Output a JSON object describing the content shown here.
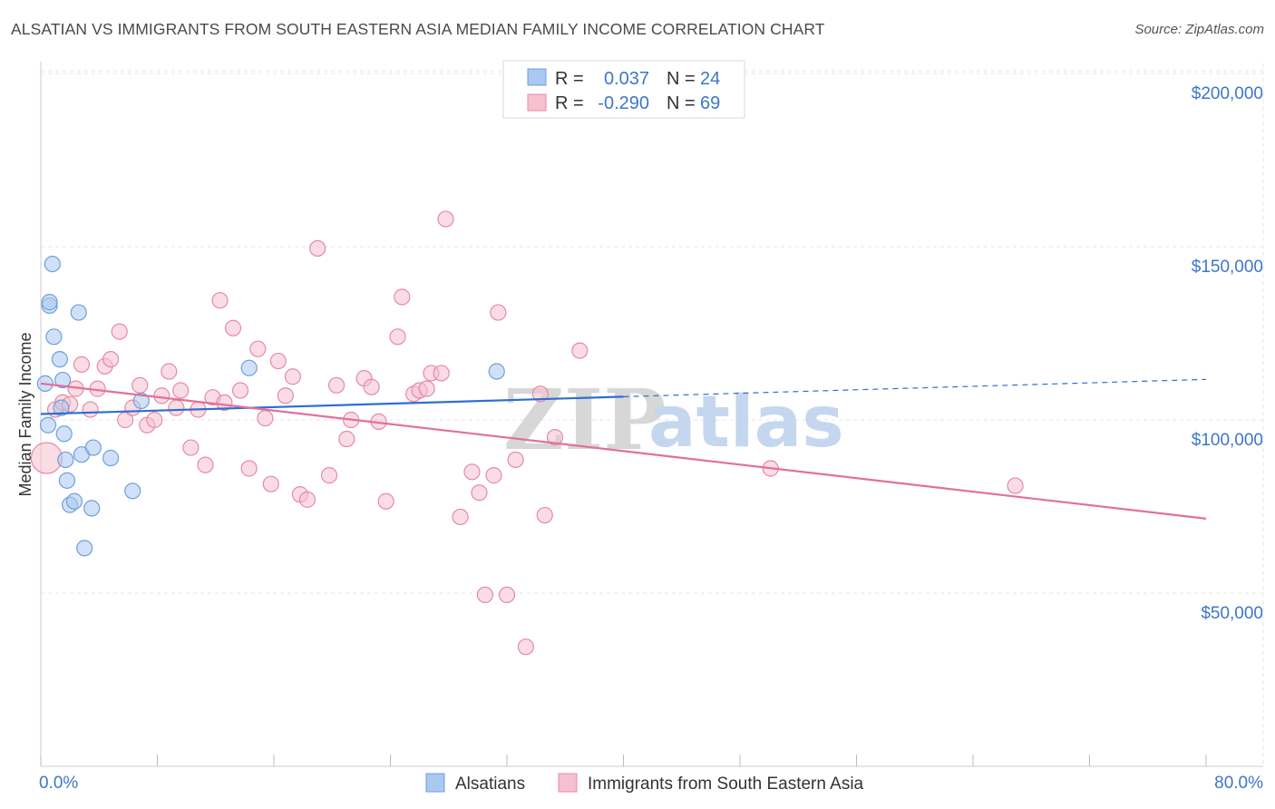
{
  "title": "ALSATIAN VS IMMIGRANTS FROM SOUTH EASTERN ASIA MEDIAN FAMILY INCOME CORRELATION CHART",
  "source": "Source: ZipAtlas.com",
  "watermark": {
    "zip": "ZIP",
    "atlas": "atlas"
  },
  "colors": {
    "blue_fill": "#aac8f0",
    "blue_stroke": "#6f9fdc",
    "blue_line": "#2f6fce",
    "pink_fill": "#f6c0d0",
    "pink_stroke": "#e58aa8",
    "pink_line": "#e2709a",
    "tick_text": "#3e76c9",
    "grid": "#e6e6e6"
  },
  "legend": {
    "rows": [
      {
        "r_label": "R =",
        "r_value": "0.037",
        "n_label": "N =",
        "n_value": "24"
      },
      {
        "r_label": "R =",
        "r_value": "-0.290",
        "n_label": "N =",
        "n_value": "69"
      }
    ]
  },
  "bottom_legend": {
    "series1": "Alsatians",
    "series2": "Immigrants from South Eastern Asia"
  },
  "chart_data": {
    "type": "scatter",
    "title": "ALSATIAN VS IMMIGRANTS FROM SOUTH EASTERN ASIA MEDIAN FAMILY INCOME CORRELATION CHART",
    "ylabel": "Median Family Income",
    "xlabel": "",
    "x_tick_labels": {
      "left": "0.0%",
      "right": "80.0%"
    },
    "xlim": [
      0,
      80
    ],
    "ylim": [
      0,
      210000
    ],
    "y_ticks": [
      {
        "value": 50000,
        "label": "$50,000"
      },
      {
        "value": 100000,
        "label": "$100,000"
      },
      {
        "value": 150000,
        "label": "$150,000"
      },
      {
        "value": 200000,
        "label": "$200,000"
      }
    ],
    "grid": true,
    "legend_position": "top-center",
    "series": [
      {
        "name": "Alsatians",
        "color": "#aac8f0",
        "trend": {
          "x_start": 0,
          "y_start": 101700,
          "x_end": 40,
          "y_end": 106700,
          "dashed_to_x": 80,
          "dashed_to_y": 111700
        },
        "points": [
          [
            0.3,
            110500
          ],
          [
            0.5,
            98500
          ],
          [
            0.6,
            133000
          ],
          [
            0.6,
            134000
          ],
          [
            0.8,
            145000
          ],
          [
            0.9,
            124000
          ],
          [
            1.3,
            117500
          ],
          [
            1.4,
            103500
          ],
          [
            1.5,
            111500
          ],
          [
            1.6,
            96000
          ],
          [
            1.7,
            88500
          ],
          [
            1.8,
            82500
          ],
          [
            2.0,
            75500
          ],
          [
            2.3,
            76500
          ],
          [
            2.6,
            131000
          ],
          [
            2.8,
            90000
          ],
          [
            3.0,
            63000
          ],
          [
            3.5,
            74500
          ],
          [
            3.6,
            92000
          ],
          [
            4.8,
            89000
          ],
          [
            6.3,
            79500
          ],
          [
            6.9,
            105500
          ],
          [
            14.3,
            115000
          ],
          [
            31.3,
            114000
          ]
        ]
      },
      {
        "name": "Immigrants from South Eastern Asia",
        "color": "#f6c0d0",
        "trend": {
          "x_start": 0,
          "y_start": 110500,
          "x_end": 80,
          "y_end": 71500
        },
        "points": [
          [
            0.4,
            89000
          ],
          [
            1.0,
            103000
          ],
          [
            1.5,
            105000
          ],
          [
            2.0,
            104500
          ],
          [
            2.4,
            109000
          ],
          [
            2.8,
            116000
          ],
          [
            3.4,
            103000
          ],
          [
            3.9,
            109000
          ],
          [
            4.4,
            115500
          ],
          [
            4.8,
            117500
          ],
          [
            5.4,
            125500
          ],
          [
            5.8,
            100000
          ],
          [
            6.3,
            103500
          ],
          [
            6.8,
            110000
          ],
          [
            7.3,
            98500
          ],
          [
            7.8,
            100000
          ],
          [
            8.3,
            107000
          ],
          [
            8.8,
            114000
          ],
          [
            9.3,
            103500
          ],
          [
            9.6,
            108500
          ],
          [
            10.3,
            92000
          ],
          [
            10.8,
            103000
          ],
          [
            11.3,
            87000
          ],
          [
            11.8,
            106500
          ],
          [
            12.3,
            134500
          ],
          [
            12.6,
            105000
          ],
          [
            13.2,
            126500
          ],
          [
            13.7,
            108500
          ],
          [
            14.3,
            86000
          ],
          [
            14.9,
            120500
          ],
          [
            15.4,
            100500
          ],
          [
            15.8,
            81500
          ],
          [
            16.3,
            117000
          ],
          [
            16.8,
            107000
          ],
          [
            17.3,
            112500
          ],
          [
            17.8,
            78500
          ],
          [
            18.3,
            77000
          ],
          [
            19.0,
            149500
          ],
          [
            19.8,
            84000
          ],
          [
            20.3,
            110000
          ],
          [
            21.0,
            94500
          ],
          [
            21.3,
            100000
          ],
          [
            22.2,
            112000
          ],
          [
            22.7,
            109500
          ],
          [
            23.2,
            99500
          ],
          [
            23.7,
            76500
          ],
          [
            24.5,
            124000
          ],
          [
            24.8,
            135500
          ],
          [
            25.6,
            107500
          ],
          [
            26.0,
            108500
          ],
          [
            26.5,
            109000
          ],
          [
            26.8,
            113500
          ],
          [
            27.5,
            113500
          ],
          [
            27.8,
            158000
          ],
          [
            28.8,
            72000
          ],
          [
            29.6,
            85000
          ],
          [
            30.1,
            79000
          ],
          [
            30.5,
            49500
          ],
          [
            31.1,
            84000
          ],
          [
            31.4,
            131000
          ],
          [
            32.0,
            49500
          ],
          [
            32.6,
            88500
          ],
          [
            33.3,
            34500
          ],
          [
            34.3,
            107500
          ],
          [
            34.6,
            72500
          ],
          [
            35.3,
            95000
          ],
          [
            37.0,
            120000
          ],
          [
            50.1,
            86000
          ],
          [
            66.9,
            81000
          ]
        ]
      }
    ]
  }
}
